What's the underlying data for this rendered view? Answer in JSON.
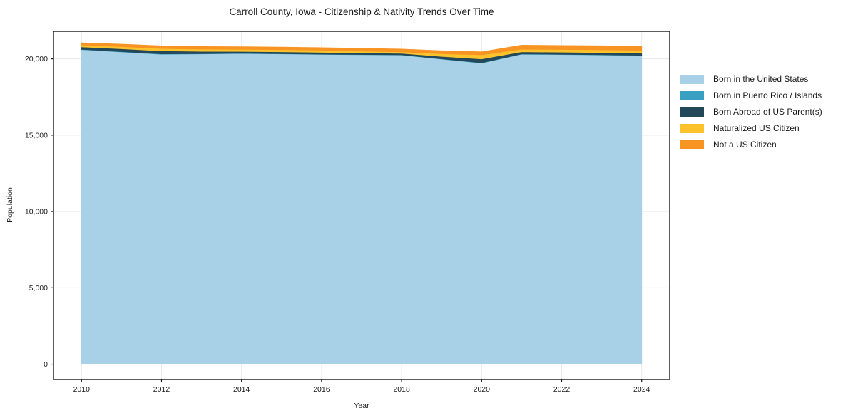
{
  "chart_data": {
    "type": "area",
    "stacked": true,
    "title": "Carroll County, Iowa - Citizenship & Nativity Trends Over Time",
    "xlabel": "Year",
    "ylabel": "Population",
    "x": [
      2010,
      2011,
      2012,
      2013,
      2014,
      2015,
      2016,
      2017,
      2018,
      2019,
      2020,
      2021,
      2022,
      2023,
      2024
    ],
    "series": [
      {
        "name": "Born in the United States",
        "color": "#a8d0e6",
        "values": [
          20600,
          20450,
          20300,
          20320,
          20350,
          20320,
          20290,
          20270,
          20250,
          19980,
          19720,
          20300,
          20280,
          20250,
          20210
        ]
      },
      {
        "name": "Born in Puerto Rico / Islands",
        "color": "#3aa0c1",
        "values": [
          25,
          25,
          25,
          20,
          20,
          20,
          15,
          15,
          15,
          20,
          25,
          20,
          20,
          20,
          20
        ]
      },
      {
        "name": "Born Abroad of US Parent(s)",
        "color": "#23485a",
        "values": [
          155,
          185,
          195,
          150,
          115,
          120,
          120,
          105,
          95,
          160,
          250,
          140,
          135,
          140,
          140
        ]
      },
      {
        "name": "Naturalized US Citizen",
        "color": "#fcc22c",
        "values": [
          125,
          140,
          155,
          145,
          140,
          140,
          140,
          115,
          95,
          180,
          265,
          170,
          175,
          180,
          185
        ]
      },
      {
        "name": "Not a US Citizen",
        "color": "#f79423",
        "values": [
          140,
          160,
          175,
          170,
          165,
          165,
          170,
          180,
          185,
          190,
          200,
          265,
          265,
          265,
          265
        ]
      }
    ],
    "xticks": [
      2010,
      2012,
      2014,
      2016,
      2018,
      2020,
      2022,
      2024
    ],
    "yticks": [
      0,
      5000,
      10000,
      15000,
      20000
    ],
    "ytick_labels": [
      "0",
      "5,000",
      "10,000",
      "15,000",
      "20,000"
    ],
    "xlim": [
      2009.3,
      2024.7
    ],
    "ylim": [
      -1000,
      21800
    ],
    "grid": true,
    "grid_color": "#e9e9e9",
    "spine_color": "#1a1a1a",
    "legend_position": "right"
  }
}
